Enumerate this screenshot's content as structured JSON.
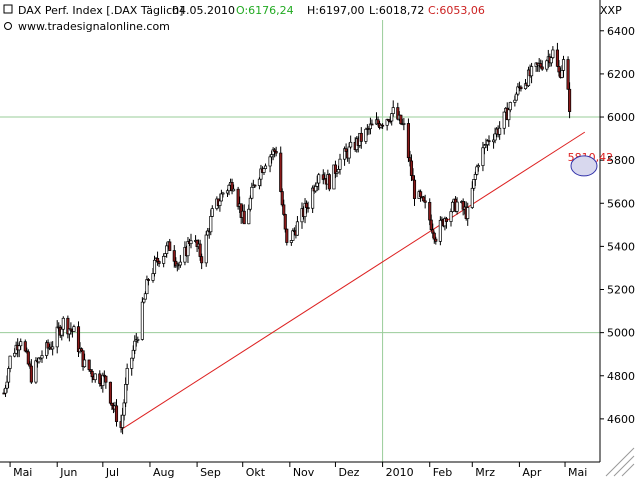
{
  "header": {
    "title": "DAX Perf. Index [.DAX Täglich]",
    "date": "04.05.2010",
    "open": "O:6176,24",
    "high": "H:6197,00",
    "low": "L:6018,72",
    "close": "C:6053,06",
    "website": "www.tradesignalonline.com",
    "instrument_code": "XXP"
  },
  "colors": {
    "open": "#22aa22",
    "close": "#cc2222",
    "trendline": "#dd2222",
    "grid_major": "#99cc99",
    "axis": "#000000",
    "bull": "#ffffff",
    "bear": "#8b1a1a",
    "marker_fill": "#d8d8ee",
    "marker_stroke": "#3333aa"
  },
  "chart_data": {
    "type": "candlestick",
    "ylim": [
      4400,
      6450
    ],
    "y_ticks": [
      4600,
      4800,
      5000,
      5200,
      5400,
      5600,
      5800,
      6000,
      6200,
      6400
    ],
    "y_tick_labels": [
      "4600",
      "4800",
      "5000",
      "5200",
      "5400",
      "5600",
      "5800",
      "6000",
      "6200",
      "6400"
    ],
    "x_tick_labels": [
      "Mai",
      "Jun",
      "Jul",
      "Aug",
      "Sep",
      "Okt",
      "Nov",
      "Dez",
      "2010",
      "Feb",
      "Mrz",
      "Apr",
      "Mai"
    ],
    "x_tick_dates": [
      "2009-05-01",
      "2009-06-01",
      "2009-07-01",
      "2009-08-01",
      "2009-09-01",
      "2009-10-01",
      "2009-11-01",
      "2009-12-01",
      "2010-01-01",
      "2010-02-01",
      "2010-03-01",
      "2010-04-01",
      "2010-05-01"
    ],
    "highlight_gridlines": {
      "y": 5000,
      "y2": 6000,
      "date": "2010-01-01"
    },
    "trendline": {
      "start": {
        "date": "2009-07-13",
        "value": 4550
      },
      "end": {
        "date": "2010-05-14",
        "value": 5930
      }
    },
    "annotation": {
      "text": "5810,42",
      "date": "2010-05-04",
      "value": 5810.42
    },
    "series": [
      {
        "points": [
          [
            "2009-04-27",
            4720
          ],
          [
            "2009-05-01",
            4880
          ],
          [
            "2009-05-08",
            4980
          ],
          [
            "2009-05-15",
            4800
          ],
          [
            "2009-05-22",
            4900
          ],
          [
            "2009-05-29",
            4950
          ],
          [
            "2009-06-05",
            5050
          ],
          [
            "2009-06-12",
            5000
          ],
          [
            "2009-06-19",
            4850
          ],
          [
            "2009-06-26",
            4800
          ],
          [
            "2009-07-03",
            4780
          ],
          [
            "2009-07-08",
            4650
          ],
          [
            "2009-07-13",
            4560
          ],
          [
            "2009-07-17",
            4800
          ],
          [
            "2009-07-24",
            5000
          ],
          [
            "2009-07-31",
            5250
          ],
          [
            "2009-08-07",
            5350
          ],
          [
            "2009-08-14",
            5400
          ],
          [
            "2009-08-21",
            5300
          ],
          [
            "2009-08-28",
            5450
          ],
          [
            "2009-09-04",
            5350
          ],
          [
            "2009-09-11",
            5550
          ],
          [
            "2009-09-18",
            5650
          ],
          [
            "2009-09-25",
            5700
          ],
          [
            "2009-10-02",
            5500
          ],
          [
            "2009-10-09",
            5700
          ],
          [
            "2009-10-16",
            5800
          ],
          [
            "2009-10-23",
            5850
          ],
          [
            "2009-10-30",
            5400
          ],
          [
            "2009-11-06",
            5500
          ],
          [
            "2009-11-13",
            5600
          ],
          [
            "2009-11-20",
            5750
          ],
          [
            "2009-11-27",
            5700
          ],
          [
            "2009-12-04",
            5800
          ],
          [
            "2009-12-11",
            5850
          ],
          [
            "2009-12-18",
            5900
          ],
          [
            "2009-12-24",
            5950
          ],
          [
            "2009-12-31",
            5980
          ],
          [
            "2010-01-08",
            6020
          ],
          [
            "2010-01-15",
            5950
          ],
          [
            "2010-01-22",
            5650
          ],
          [
            "2010-01-29",
            5580
          ],
          [
            "2010-02-05",
            5450
          ],
          [
            "2010-02-12",
            5550
          ],
          [
            "2010-02-19",
            5600
          ],
          [
            "2010-02-26",
            5550
          ],
          [
            "2010-03-05",
            5800
          ],
          [
            "2010-03-12",
            5900
          ],
          [
            "2010-03-19",
            5950
          ],
          [
            "2010-03-26",
            6050
          ],
          [
            "2010-04-02",
            6150
          ],
          [
            "2010-04-09",
            6200
          ],
          [
            "2010-04-16",
            6250
          ],
          [
            "2010-04-23",
            6300
          ],
          [
            "2010-04-27",
            6200
          ],
          [
            "2010-04-30",
            6250
          ],
          [
            "2010-05-04",
            6053
          ]
        ]
      }
    ]
  }
}
